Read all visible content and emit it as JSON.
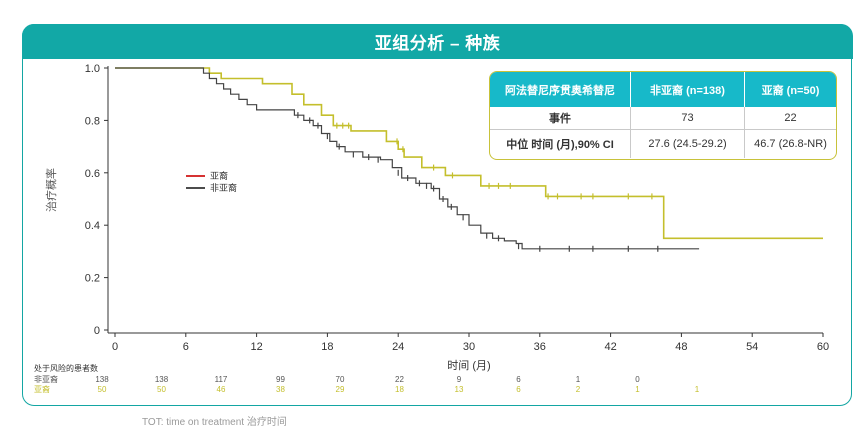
{
  "title": "亚组分析 – 种族",
  "chart_data": {
    "type": "line",
    "ylabel": "治疗概率",
    "xlabel": "时间 (月)",
    "xlim": [
      0,
      60
    ],
    "ylim": [
      0,
      1.0
    ],
    "x_ticks": [
      0,
      6,
      12,
      18,
      24,
      30,
      36,
      42,
      48,
      54,
      60
    ],
    "y_ticks": [
      0,
      0.2,
      0.4,
      0.6,
      0.8,
      1.0
    ],
    "y_tick_labels": [
      "0",
      "0.2",
      "0.4",
      "0.6",
      "0.8",
      "1.0"
    ],
    "legend": {
      "placement": "left-middle",
      "entries": [
        "亚裔",
        "非亚裔"
      ]
    },
    "series": [
      {
        "name": "亚裔",
        "color": "#c4bf2c",
        "step": [
          [
            0,
            1.0
          ],
          [
            8,
            1.0
          ],
          [
            8,
            0.98
          ],
          [
            9,
            0.98
          ],
          [
            9,
            0.96
          ],
          [
            12.5,
            0.96
          ],
          [
            12.5,
            0.94
          ],
          [
            15,
            0.94
          ],
          [
            15,
            0.9
          ],
          [
            16,
            0.9
          ],
          [
            16,
            0.86
          ],
          [
            17.5,
            0.86
          ],
          [
            17.5,
            0.82
          ],
          [
            18.5,
            0.82
          ],
          [
            18.5,
            0.78
          ],
          [
            20,
            0.78
          ],
          [
            20,
            0.76
          ],
          [
            23,
            0.76
          ],
          [
            23,
            0.72
          ],
          [
            24,
            0.72
          ],
          [
            24,
            0.69
          ],
          [
            24.5,
            0.69
          ],
          [
            24.5,
            0.66
          ],
          [
            26,
            0.66
          ],
          [
            26,
            0.62
          ],
          [
            28,
            0.62
          ],
          [
            28,
            0.59
          ],
          [
            31,
            0.59
          ],
          [
            31,
            0.55
          ],
          [
            36.5,
            0.55
          ],
          [
            36.5,
            0.51
          ],
          [
            46.5,
            0.51
          ],
          [
            46.5,
            0.35
          ],
          [
            60,
            0.35
          ]
        ],
        "censored": [
          [
            18.8,
            0.78
          ],
          [
            19.3,
            0.78
          ],
          [
            19.8,
            0.78
          ],
          [
            23.9,
            0.72
          ],
          [
            24.4,
            0.69
          ],
          [
            27,
            0.62
          ],
          [
            28.6,
            0.59
          ],
          [
            31.7,
            0.55
          ],
          [
            32.5,
            0.55
          ],
          [
            33.5,
            0.55
          ],
          [
            36.7,
            0.51
          ],
          [
            37.5,
            0.51
          ],
          [
            39.5,
            0.51
          ],
          [
            40.5,
            0.51
          ],
          [
            43.5,
            0.51
          ],
          [
            45.5,
            0.51
          ]
        ]
      },
      {
        "name": "非亚裔",
        "color": "#444444",
        "step": [
          [
            0,
            1.0
          ],
          [
            7.5,
            1.0
          ],
          [
            7.5,
            0.98
          ],
          [
            8,
            0.96
          ],
          [
            8.6,
            0.94
          ],
          [
            9.2,
            0.92
          ],
          [
            9.8,
            0.9
          ],
          [
            10.5,
            0.88
          ],
          [
            11.2,
            0.86
          ],
          [
            12,
            0.84
          ],
          [
            13,
            0.84
          ],
          [
            14.5,
            0.84
          ],
          [
            15.2,
            0.82
          ],
          [
            16,
            0.8
          ],
          [
            16.8,
            0.78
          ],
          [
            17.5,
            0.75
          ],
          [
            18.2,
            0.72
          ],
          [
            18.8,
            0.7
          ],
          [
            19.5,
            0.68
          ],
          [
            21,
            0.66
          ],
          [
            22.5,
            0.65
          ],
          [
            23.5,
            0.62
          ],
          [
            24.3,
            0.58
          ],
          [
            25.5,
            0.56
          ],
          [
            26.8,
            0.54
          ],
          [
            27.5,
            0.5
          ],
          [
            28.2,
            0.47
          ],
          [
            29,
            0.44
          ],
          [
            30,
            0.4
          ],
          [
            31,
            0.37
          ],
          [
            32,
            0.35
          ],
          [
            33,
            0.34
          ],
          [
            34,
            0.33
          ],
          [
            34.5,
            0.31
          ],
          [
            49.5,
            0.31
          ]
        ],
        "censored": [
          [
            15.5,
            0.82
          ],
          [
            16.5,
            0.8
          ],
          [
            17.2,
            0.78
          ],
          [
            18,
            0.74
          ],
          [
            19,
            0.7
          ],
          [
            20.2,
            0.67
          ],
          [
            21.5,
            0.66
          ],
          [
            22.3,
            0.65
          ],
          [
            24,
            0.6
          ],
          [
            24.8,
            0.58
          ],
          [
            25.8,
            0.56
          ],
          [
            26.4,
            0.55
          ],
          [
            27,
            0.54
          ],
          [
            27.8,
            0.5
          ],
          [
            28.5,
            0.47
          ],
          [
            29.5,
            0.43
          ],
          [
            31.5,
            0.36
          ],
          [
            32.5,
            0.35
          ],
          [
            34.2,
            0.32
          ],
          [
            36,
            0.31
          ],
          [
            38.5,
            0.31
          ],
          [
            40.5,
            0.31
          ],
          [
            43.5,
            0.31
          ],
          [
            46,
            0.31
          ]
        ]
      }
    ]
  },
  "stats_table": {
    "header": [
      "阿法替尼序贯奥希替尼",
      "非亚裔 (n=138)",
      "亚裔 (n=50)"
    ],
    "rows": [
      [
        "事件",
        "73",
        "22"
      ],
      [
        "中位 时间 (月),90% CI",
        "27.6 (24.5-29.2)",
        "46.7 (26.8-NR)"
      ]
    ]
  },
  "risk_table": {
    "title": "处于风险的患者数",
    "rows": [
      {
        "label": "非亚裔",
        "color": "#555555",
        "values": [
          "138",
          "138",
          "117",
          "99",
          "70",
          "22",
          "9",
          "6",
          "1",
          "0"
        ]
      },
      {
        "label": "亚裔",
        "color": "#c4bf2c",
        "values": [
          "50",
          "50",
          "46",
          "38",
          "29",
          "18",
          "13",
          "6",
          "2",
          "1",
          "1"
        ]
      }
    ]
  },
  "footnote": "TOT: time on treatment 治疗时间"
}
